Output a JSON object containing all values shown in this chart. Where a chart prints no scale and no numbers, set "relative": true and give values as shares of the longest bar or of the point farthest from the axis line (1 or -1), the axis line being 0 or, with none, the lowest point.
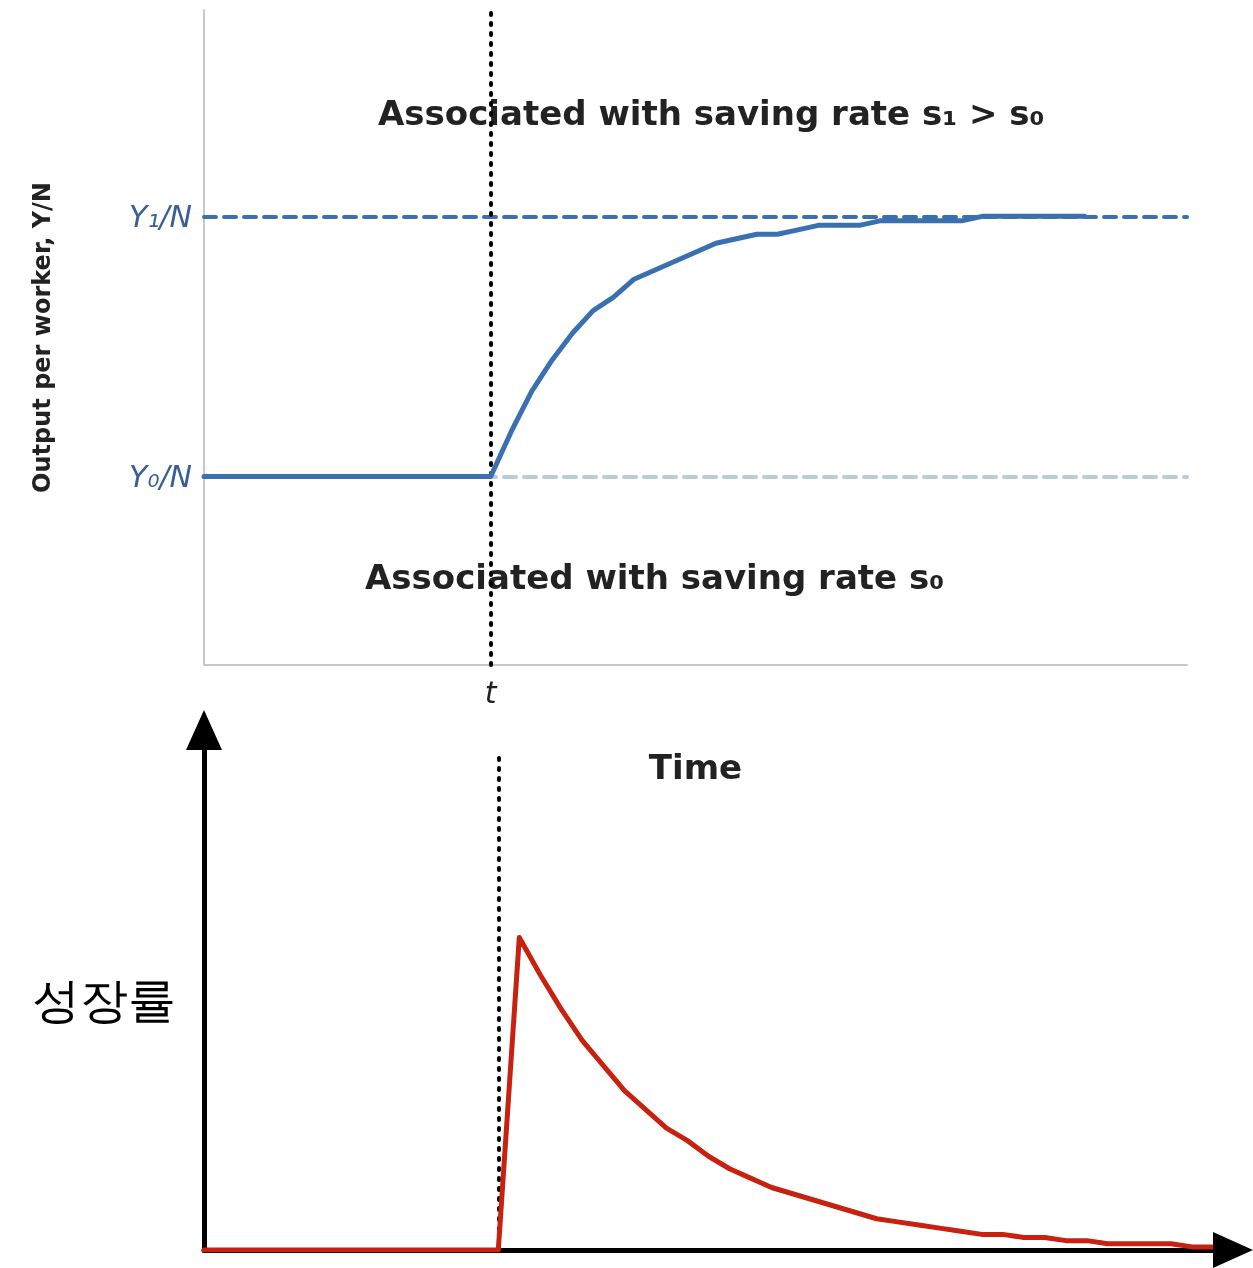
{
  "chart_data": [
    {
      "type": "line",
      "relative": true,
      "ylabel": "Output per worker, Y/N",
      "xlabel": "Time",
      "categories": [
        null,
        null,
        null,
        null,
        null,
        null,
        null,
        null,
        null,
        null,
        null,
        null,
        null,
        null,
        null,
        null,
        null,
        null,
        null,
        null,
        null,
        null,
        null,
        null,
        null,
        null,
        null,
        null,
        null,
        null,
        null,
        null,
        null,
        null,
        null,
        null,
        null,
        null,
        null,
        null,
        null,
        null,
        null,
        null,
        null,
        null,
        null,
        null,
        null
      ],
      "series": [
        {
          "color": "#3a6fb0",
          "values": [
            0.42,
            0.42,
            0.42,
            0.42,
            0.42,
            0.42,
            0.42,
            0.42,
            0.42,
            0.42,
            0.42,
            0.42,
            0.42,
            0.42,
            0.42,
            0.52,
            0.61,
            0.68,
            0.74,
            0.79,
            0.82,
            0.86,
            0.88,
            0.9,
            0.92,
            0.94,
            0.95,
            0.96,
            0.96,
            0.97,
            0.98,
            0.98,
            0.98,
            0.99,
            0.99,
            0.99,
            0.99,
            0.99,
            1.0,
            1.0,
            1.0,
            1.0,
            1.0,
            1.0,
            null,
            null,
            null,
            null,
            null
          ]
        }
      ],
      "ref_lines": [
        {
          "axis": "y",
          "value": 1,
          "label": "Y₁/N",
          "color": "#3a6fb0",
          "line_style": "dashed"
        },
        {
          "axis": "y",
          "value": 0.42,
          "label": "Y₀/N",
          "color": "#b5cdd3",
          "line_style": "dashed"
        }
      ],
      "annotations": [
        "Associated with saving rate s₁ > s₀",
        "Associated with saving rate s₀",
        "t"
      ],
      "marker": "none",
      "line_style": "solid"
    },
    {
      "type": "line",
      "relative": true,
      "ylabel": "성장률",
      "categories": [
        null,
        null,
        null,
        null,
        null,
        null,
        null,
        null,
        null,
        null,
        null,
        null,
        null,
        null,
        null,
        null,
        null,
        null,
        null,
        null,
        null,
        null,
        null,
        null,
        null,
        null,
        null,
        null,
        null,
        null,
        null,
        null,
        null,
        null,
        null,
        null,
        null,
        null,
        null,
        null,
        null,
        null,
        null,
        null,
        null,
        null,
        null,
        null,
        null
      ],
      "series": [
        {
          "color": "#c8210f",
          "values": [
            0,
            0,
            0,
            0,
            0,
            0,
            0,
            0,
            0,
            0,
            0,
            0,
            0,
            0,
            0,
            1,
            0.88,
            0.77,
            0.67,
            0.59,
            0.51,
            0.45,
            0.39,
            0.35,
            0.3,
            0.26,
            0.23,
            0.2,
            0.18,
            0.16,
            0.14,
            0.12,
            0.1,
            0.09,
            0.08,
            0.07,
            0.06,
            0.05,
            0.05,
            0.04,
            0.04,
            0.03,
            0.03,
            0.02,
            0.02,
            0.02,
            0.02,
            0.01,
            0.01
          ]
        }
      ],
      "marker": "none",
      "line_style": "solid"
    }
  ]
}
